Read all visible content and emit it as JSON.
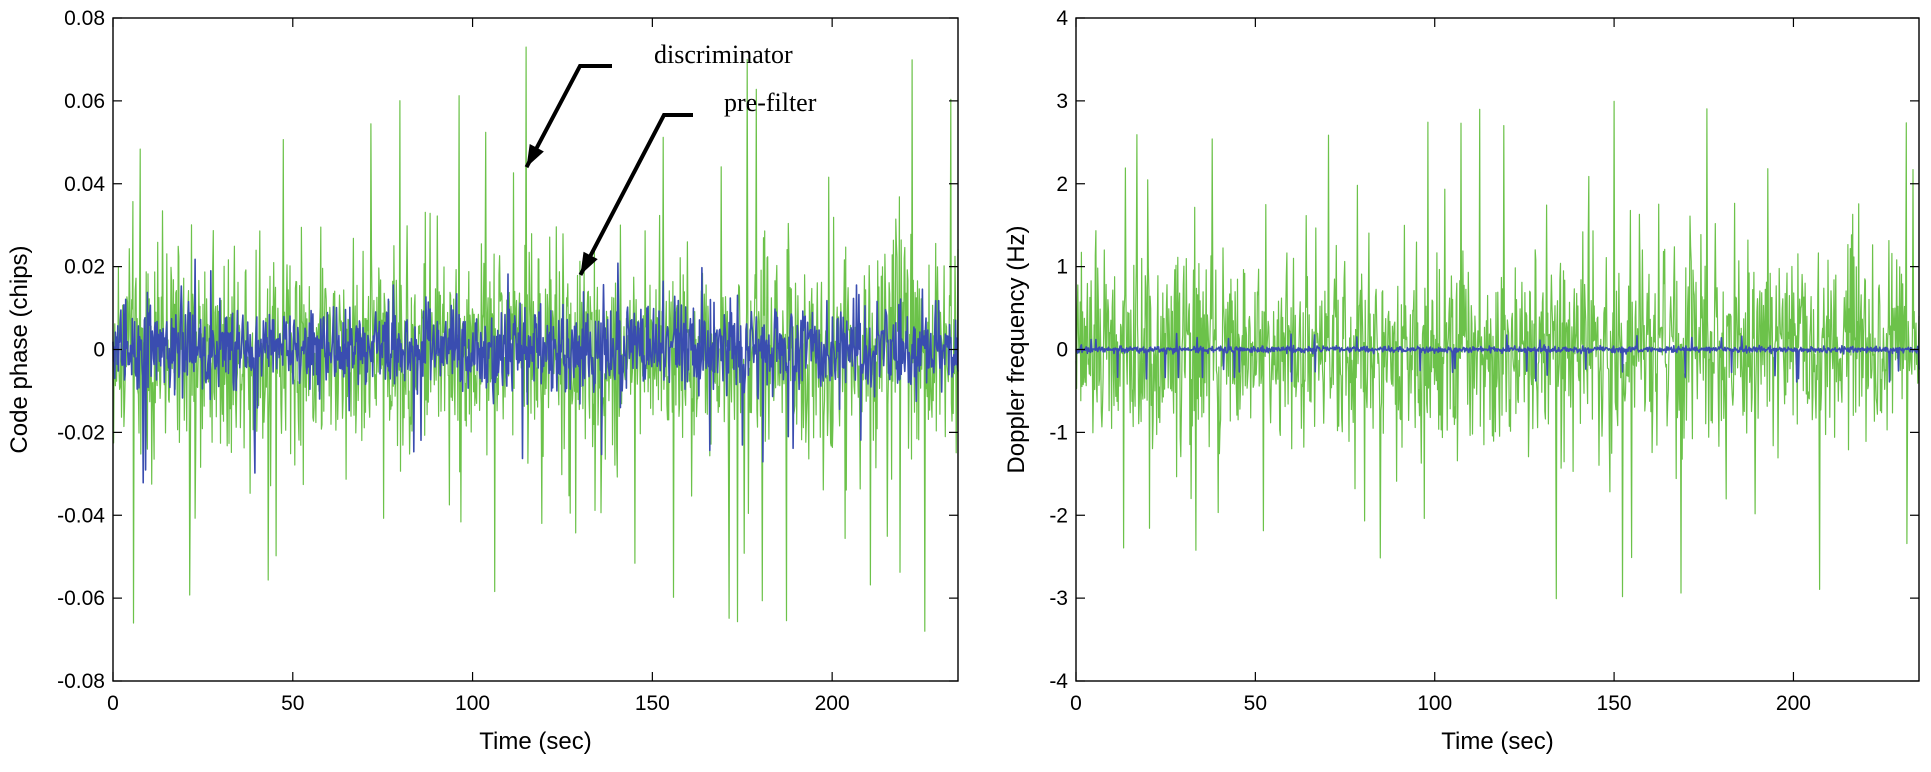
{
  "colors": {
    "discriminator": "#6cc24a",
    "pre_filter": "#3a4db0",
    "axis": "#000000"
  },
  "chart_data": [
    {
      "type": "line",
      "title": "",
      "xlabel": "Time (sec)",
      "ylabel": "Code phase (chips)",
      "xlim": [
        0,
        235
      ],
      "ylim": [
        -0.08,
        0.08
      ],
      "xticks": [
        "0",
        "50",
        "100",
        "150",
        "200"
      ],
      "yticks": [
        "-0.08",
        "-0.06",
        "-0.04",
        "-0.02",
        "0",
        "0.02",
        "0.04",
        "0.06",
        "0.08"
      ],
      "grid": false,
      "annotations": [
        {
          "text": "discriminator",
          "points_to": "green series",
          "arrow_tip": [
            115,
            0.044
          ]
        },
        {
          "text": "pre-filter",
          "points_to": "blue series",
          "arrow_tip": [
            130,
            0.018
          ]
        }
      ],
      "series": [
        {
          "key": "discriminator",
          "style": "dense noise",
          "base_amplitude": 0.02,
          "peak_max": 0.074,
          "peak_min": -0.068
        },
        {
          "key": "pre_filter",
          "style": "dense noise",
          "base_amplitude": 0.008,
          "peak_max": 0.022,
          "peak_min": -0.034
        }
      ]
    },
    {
      "type": "line",
      "title": "",
      "xlabel": "Time (sec)",
      "ylabel": "Doppler frequency (Hz)",
      "xlim": [
        0,
        235
      ],
      "ylim": [
        -4,
        4
      ],
      "xticks": [
        "0",
        "50",
        "100",
        "150",
        "200"
      ],
      "yticks": [
        "-4",
        "-3",
        "-2",
        "-1",
        "0",
        "1",
        "2",
        "3",
        "4"
      ],
      "grid": false,
      "series": [
        {
          "key": "discriminator",
          "style": "dense noise",
          "base_amplitude": 0.9,
          "peak_max": 3.1,
          "peak_min": -3.15
        },
        {
          "key": "pre_filter",
          "style": "near-zero noise",
          "base_amplitude": 0.03,
          "peak_max": 0.2,
          "peak_min": -0.4
        }
      ]
    }
  ]
}
